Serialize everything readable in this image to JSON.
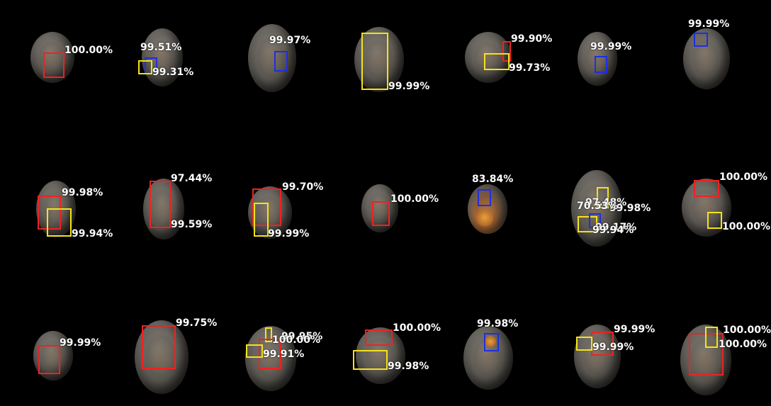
{
  "colors": {
    "red": "#ee2222",
    "blue": "#1f2ee0",
    "yellow": "#f4e21a",
    "background": "#000000"
  },
  "detections": [
    {
      "item": 1,
      "labels": [
        "100.00%"
      ]
    },
    {
      "item": 2,
      "labels": [
        "99.51%",
        "99.31%"
      ]
    },
    {
      "item": 3,
      "labels": [
        "99.97%"
      ]
    },
    {
      "item": 4,
      "labels": [
        "99.99%"
      ]
    },
    {
      "item": 5,
      "labels": [
        "99.90%",
        "99.73%"
      ]
    },
    {
      "item": 6,
      "labels": [
        "99.99%"
      ]
    },
    {
      "item": 7,
      "labels": [
        "99.99%"
      ]
    },
    {
      "item": 8,
      "labels": [
        "99.98%",
        "99.94%"
      ]
    },
    {
      "item": 9,
      "labels": [
        "97.44%",
        "99.59%"
      ]
    },
    {
      "item": 10,
      "labels": [
        "99.70%",
        "99.99%"
      ]
    },
    {
      "item": 11,
      "labels": [
        "100.00%"
      ]
    },
    {
      "item": 12,
      "labels": [
        "83.84%"
      ]
    },
    {
      "item": 13,
      "labels": [
        "97.48%",
        "99.98%",
        "70.53%",
        "99.17%",
        "99.94%"
      ]
    },
    {
      "item": 14,
      "labels": [
        "100.00%",
        "100.00%"
      ]
    },
    {
      "item": 15,
      "labels": [
        "99.99%"
      ]
    },
    {
      "item": 16,
      "labels": [
        "99.75%"
      ]
    },
    {
      "item": 17,
      "labels": [
        "99.95%",
        "100.00%",
        "99.91%"
      ]
    },
    {
      "item": 18,
      "labels": [
        "100.00%",
        "99.98%"
      ]
    },
    {
      "item": 19,
      "labels": [
        "99.98%"
      ]
    },
    {
      "item": 20,
      "labels": [
        "99.99%",
        "99.99%"
      ]
    },
    {
      "item": 21,
      "labels": [
        "100.00%",
        "100.00%"
      ]
    }
  ]
}
